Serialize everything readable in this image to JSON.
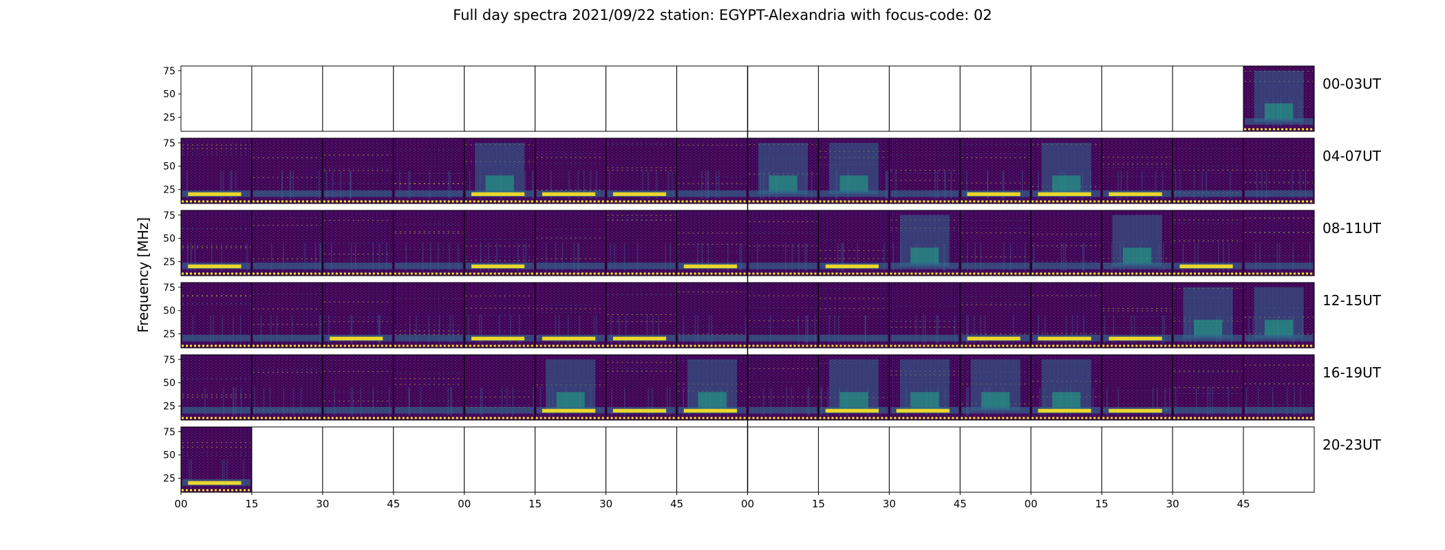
{
  "title": "Full day spectra 2021/09/22 station: EGYPT-Alexandria with focus-code: 02",
  "ylabel": "Frequency [MHz]",
  "chart_data": {
    "type": "heatmap",
    "title": "Full day spectra 2021/09/22 station: EGYPT-Alexandria with focus-code: 02",
    "ylabel": "Frequency [MHz]",
    "xlabel": "",
    "ylim": [
      10,
      80
    ],
    "yticks": [
      "25",
      "50",
      "75"
    ],
    "xticks": [
      "00",
      "15",
      "30",
      "45",
      "00",
      "15",
      "30",
      "45",
      "00",
      "15",
      "30",
      "45",
      "00",
      "15",
      "30",
      "45"
    ],
    "colormap": "viridis",
    "colors": {
      "background": "#440154",
      "mid": "#31688e",
      "teal": "#20a386",
      "high": "#fde725",
      "frame": "#000000"
    },
    "rows": [
      {
        "label": "00-03UT",
        "filled": [
          15
        ],
        "bright": [],
        "teal": [
          15
        ]
      },
      {
        "label": "04-07UT",
        "filled": [
          0,
          1,
          2,
          3,
          4,
          5,
          6,
          7,
          8,
          9,
          10,
          11,
          12,
          13,
          14,
          15
        ],
        "bright": [
          0,
          4,
          5,
          6,
          11,
          12,
          13
        ],
        "teal": [
          4,
          8,
          9,
          12
        ]
      },
      {
        "label": "08-11UT",
        "filled": [
          0,
          1,
          2,
          3,
          4,
          5,
          6,
          7,
          8,
          9,
          10,
          11,
          12,
          13,
          14,
          15
        ],
        "bright": [
          0,
          4,
          7,
          9,
          14
        ],
        "teal": [
          10,
          13
        ]
      },
      {
        "label": "12-15UT",
        "filled": [
          0,
          1,
          2,
          3,
          4,
          5,
          6,
          7,
          8,
          9,
          10,
          11,
          12,
          13,
          14,
          15
        ],
        "bright": [
          2,
          4,
          5,
          6,
          11,
          12,
          13
        ],
        "teal": [
          14,
          15
        ]
      },
      {
        "label": "16-19UT",
        "filled": [
          0,
          1,
          2,
          3,
          4,
          5,
          6,
          7,
          8,
          9,
          10,
          11,
          12,
          13,
          14,
          15
        ],
        "bright": [
          5,
          6,
          7,
          9,
          10,
          12,
          13
        ],
        "teal": [
          5,
          7,
          9,
          10,
          11,
          12
        ]
      },
      {
        "label": "20-23UT",
        "filled": [
          0
        ],
        "bright": [
          0
        ],
        "teal": []
      }
    ]
  }
}
